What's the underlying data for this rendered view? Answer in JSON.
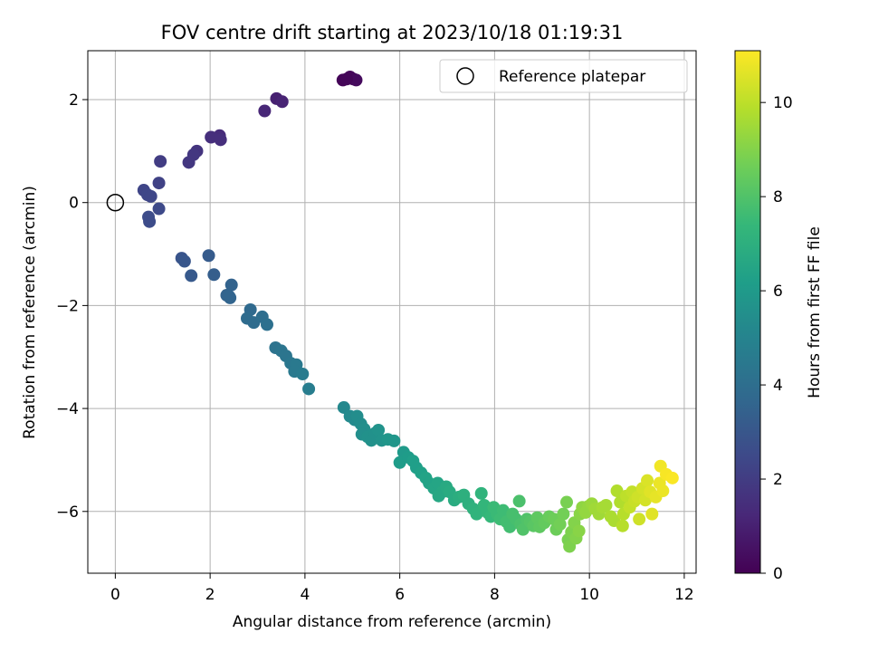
{
  "chart_data": {
    "type": "scatter",
    "title": "FOV centre drift starting at 2023/10/18 01:19:31",
    "xlabel": "Angular distance from reference (arcmin)",
    "ylabel": "Rotation from reference (arcmin)",
    "xlim": [
      -0.58,
      12.25
    ],
    "ylim": [
      -7.2,
      2.95
    ],
    "xticks": [
      0,
      2,
      4,
      6,
      8,
      10,
      12
    ],
    "yticks": [
      -6,
      -4,
      -2,
      0,
      2
    ],
    "xtick_labels": [
      "0",
      "2",
      "4",
      "6",
      "8",
      "10",
      "12"
    ],
    "ytick_labels": [
      "−6",
      "−4",
      "−2",
      "0",
      "2"
    ],
    "grid": true,
    "legend": {
      "placement": "top-right",
      "entries": [
        "Reference platepar"
      ]
    },
    "colorbar": {
      "label": "Hours from first FF file",
      "colormap": "viridis",
      "range": [
        0,
        11.1
      ],
      "ticks": [
        0,
        2,
        4,
        6,
        8,
        10
      ],
      "tick_labels": [
        "0",
        "2",
        "4",
        "6",
        "8",
        "10"
      ]
    },
    "reference_point": {
      "x": 0,
      "y": 0
    },
    "colormap_stops": [
      "#440154",
      "#482878",
      "#3e4989",
      "#31688e",
      "#26828e",
      "#1f9e89",
      "#35b779",
      "#6ece58",
      "#b5de2b",
      "#fde725"
    ],
    "points": [
      [
        4.8,
        2.38,
        0.1
      ],
      [
        4.95,
        2.44,
        0.2
      ],
      [
        5.02,
        2.4,
        0.2
      ],
      [
        5.08,
        2.38,
        0.3
      ],
      [
        4.88,
        2.4,
        0.15
      ],
      [
        3.4,
        2.02,
        1.0
      ],
      [
        3.52,
        1.96,
        1.1
      ],
      [
        3.15,
        1.78,
        1.2
      ],
      [
        2.2,
        1.3,
        1.4
      ],
      [
        2.02,
        1.27,
        1.5
      ],
      [
        2.22,
        1.22,
        1.5
      ],
      [
        1.72,
        1.0,
        1.7
      ],
      [
        1.65,
        0.93,
        1.8
      ],
      [
        1.55,
        0.78,
        1.8
      ],
      [
        0.95,
        0.8,
        2.0
      ],
      [
        0.92,
        0.38,
        2.2
      ],
      [
        0.6,
        0.24,
        2.3
      ],
      [
        0.68,
        0.15,
        2.4
      ],
      [
        0.75,
        0.12,
        2.4
      ],
      [
        0.92,
        -0.12,
        2.5
      ],
      [
        0.7,
        -0.28,
        2.6
      ],
      [
        0.72,
        -0.37,
        2.6
      ],
      [
        1.4,
        -1.08,
        2.9
      ],
      [
        1.46,
        -1.14,
        3.0
      ],
      [
        1.6,
        -1.42,
        3.1
      ],
      [
        1.97,
        -1.03,
        3.2
      ],
      [
        2.08,
        -1.4,
        3.3
      ],
      [
        2.45,
        -1.6,
        3.5
      ],
      [
        2.35,
        -1.8,
        3.5
      ],
      [
        2.42,
        -1.85,
        3.6
      ],
      [
        2.4,
        -1.82,
        3.6
      ],
      [
        2.85,
        -2.08,
        3.8
      ],
      [
        2.78,
        -2.25,
        3.9
      ],
      [
        2.92,
        -2.33,
        3.9
      ],
      [
        3.1,
        -2.22,
        4.0
      ],
      [
        3.2,
        -2.37,
        4.1
      ],
      [
        3.38,
        -2.82,
        4.2
      ],
      [
        3.5,
        -2.88,
        4.3
      ],
      [
        3.6,
        -2.98,
        4.3
      ],
      [
        3.7,
        -3.12,
        4.4
      ],
      [
        3.82,
        -3.15,
        4.5
      ],
      [
        3.78,
        -3.28,
        4.5
      ],
      [
        3.95,
        -3.33,
        4.6
      ],
      [
        4.08,
        -3.62,
        4.7
      ],
      [
        4.82,
        -3.98,
        5.2
      ],
      [
        4.95,
        -4.15,
        5.3
      ],
      [
        5.05,
        -4.22,
        5.3
      ],
      [
        5.1,
        -4.15,
        5.4
      ],
      [
        5.18,
        -4.3,
        5.4
      ],
      [
        5.25,
        -4.4,
        5.5
      ],
      [
        5.2,
        -4.5,
        5.5
      ],
      [
        5.32,
        -4.55,
        5.6
      ],
      [
        5.4,
        -4.62,
        5.6
      ],
      [
        5.48,
        -4.48,
        5.6
      ],
      [
        5.55,
        -4.42,
        5.7
      ],
      [
        5.62,
        -4.62,
        5.7
      ],
      [
        5.75,
        -4.6,
        5.8
      ],
      [
        5.88,
        -4.63,
        5.8
      ],
      [
        6.08,
        -4.85,
        6.0
      ],
      [
        6.0,
        -5.05,
        6.1
      ],
      [
        6.18,
        -4.95,
        6.1
      ],
      [
        6.28,
        -5.02,
        6.2
      ],
      [
        6.35,
        -5.15,
        6.2
      ],
      [
        6.45,
        -5.25,
        6.3
      ],
      [
        6.55,
        -5.35,
        6.4
      ],
      [
        6.62,
        -5.45,
        6.4
      ],
      [
        6.72,
        -5.55,
        6.5
      ],
      [
        6.8,
        -5.45,
        6.5
      ],
      [
        6.9,
        -5.62,
        6.6
      ],
      [
        6.82,
        -5.7,
        6.6
      ],
      [
        6.98,
        -5.52,
        6.7
      ],
      [
        7.05,
        -5.62,
        6.8
      ],
      [
        7.15,
        -5.78,
        6.8
      ],
      [
        7.25,
        -5.72,
        6.9
      ],
      [
        7.35,
        -5.68,
        7.0
      ],
      [
        7.45,
        -5.85,
        7.0
      ],
      [
        7.55,
        -5.95,
        7.1
      ],
      [
        7.62,
        -6.05,
        7.2
      ],
      [
        7.72,
        -5.65,
        7.2
      ],
      [
        7.78,
        -5.88,
        7.3
      ],
      [
        7.85,
        -6.02,
        7.3
      ],
      [
        7.92,
        -6.1,
        7.4
      ],
      [
        7.98,
        -5.92,
        7.5
      ],
      [
        8.05,
        -6.05,
        7.5
      ],
      [
        8.12,
        -6.15,
        7.6
      ],
      [
        8.18,
        -5.98,
        7.6
      ],
      [
        8.25,
        -6.2,
        7.7
      ],
      [
        8.32,
        -6.3,
        7.7
      ],
      [
        8.38,
        -6.05,
        7.8
      ],
      [
        8.45,
        -6.15,
        7.8
      ],
      [
        8.52,
        -5.8,
        7.9
      ],
      [
        8.55,
        -6.25,
        7.9
      ],
      [
        8.6,
        -6.35,
        8.0
      ],
      [
        8.68,
        -6.15,
        8.0
      ],
      [
        8.75,
        -6.2,
        8.1
      ],
      [
        8.82,
        -6.28,
        8.2
      ],
      [
        8.9,
        -6.12,
        8.3
      ],
      [
        8.95,
        -6.3,
        8.3
      ],
      [
        9.05,
        -6.22,
        8.4
      ],
      [
        9.15,
        -6.1,
        8.5
      ],
      [
        9.25,
        -6.15,
        8.6
      ],
      [
        9.3,
        -6.35,
        8.6
      ],
      [
        9.38,
        -6.25,
        8.7
      ],
      [
        9.45,
        -6.05,
        8.7
      ],
      [
        9.52,
        -5.82,
        8.8
      ],
      [
        9.55,
        -6.55,
        8.8
      ],
      [
        9.58,
        -6.68,
        8.9
      ],
      [
        9.62,
        -6.4,
        8.9
      ],
      [
        9.68,
        -6.22,
        9.0
      ],
      [
        9.72,
        -6.52,
        9.0
      ],
      [
        9.78,
        -6.38,
        9.1
      ],
      [
        9.8,
        -6.05,
        9.1
      ],
      [
        9.85,
        -5.92,
        9.2
      ],
      [
        9.92,
        -6.02,
        9.3
      ],
      [
        9.98,
        -5.9,
        9.3
      ],
      [
        10.05,
        -5.85,
        9.4
      ],
      [
        10.12,
        -5.95,
        9.5
      ],
      [
        10.2,
        -6.05,
        9.5
      ],
      [
        10.28,
        -5.92,
        9.6
      ],
      [
        10.35,
        -5.88,
        9.6
      ],
      [
        10.45,
        -6.1,
        9.7
      ],
      [
        10.52,
        -6.18,
        9.7
      ],
      [
        10.58,
        -5.6,
        9.8
      ],
      [
        10.65,
        -5.82,
        9.8
      ],
      [
        10.7,
        -6.28,
        9.9
      ],
      [
        10.72,
        -6.05,
        9.9
      ],
      [
        10.78,
        -5.7,
        10.0
      ],
      [
        10.85,
        -5.92,
        10.1
      ],
      [
        10.9,
        -5.62,
        10.1
      ],
      [
        10.95,
        -5.8,
        10.2
      ],
      [
        11.02,
        -5.72,
        10.3
      ],
      [
        11.05,
        -6.15,
        10.3
      ],
      [
        11.12,
        -5.55,
        10.4
      ],
      [
        11.18,
        -5.78,
        10.4
      ],
      [
        11.22,
        -5.4,
        10.5
      ],
      [
        11.28,
        -5.62,
        10.6
      ],
      [
        11.32,
        -6.05,
        10.6
      ],
      [
        11.4,
        -5.72,
        10.7
      ],
      [
        11.48,
        -5.45,
        10.8
      ],
      [
        11.55,
        -5.6,
        10.8
      ],
      [
        11.5,
        -5.12,
        10.9
      ],
      [
        11.62,
        -5.28,
        11.0
      ],
      [
        11.75,
        -5.35,
        11.05
      ]
    ]
  }
}
